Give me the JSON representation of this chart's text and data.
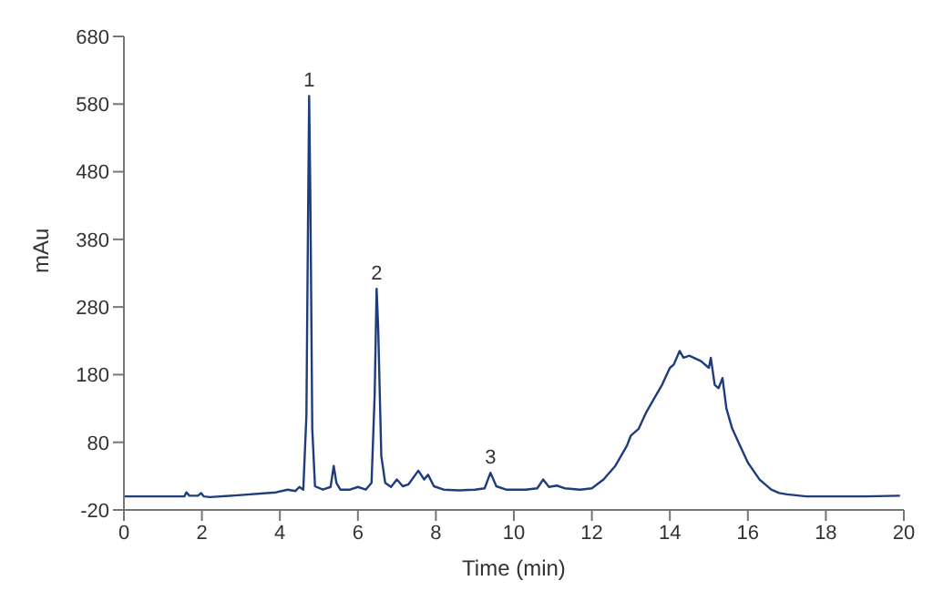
{
  "chart_data": {
    "type": "line",
    "xlabel": "Time (min)",
    "ylabel": "mAu",
    "x": [
      0,
      1.55,
      1.6,
      1.68,
      1.9,
      1.98,
      2.05,
      2.2,
      3,
      3.9,
      4.2,
      4.4,
      4.5,
      4.6,
      4.68,
      4.72,
      4.75,
      4.78,
      4.83,
      4.9,
      5.1,
      5.3,
      5.38,
      5.45,
      5.55,
      5.8,
      6.0,
      6.2,
      6.35,
      6.43,
      6.48,
      6.52,
      6.6,
      6.7,
      6.85,
      7.0,
      7.15,
      7.3,
      7.55,
      7.7,
      7.8,
      7.95,
      8.2,
      8.6,
      9.0,
      9.25,
      9.4,
      9.55,
      9.8,
      10.3,
      10.6,
      10.75,
      10.9,
      11.1,
      11.3,
      11.7,
      12.0,
      12.3,
      12.6,
      12.9,
      13.0,
      13.2,
      13.4,
      13.6,
      13.8,
      14.0,
      14.1,
      14.25,
      14.35,
      14.5,
      14.8,
      15.0,
      15.05,
      15.15,
      15.25,
      15.35,
      15.45,
      15.6,
      15.8,
      16.0,
      16.3,
      16.6,
      16.8,
      17.0,
      17.5,
      18,
      19,
      19.9
    ],
    "series": [
      {
        "color": "#1f3d7a",
        "values": [
          0,
          0,
          6,
          1,
          1,
          5,
          0,
          -1,
          2,
          6,
          10,
          8,
          14,
          10,
          120,
          400,
          592,
          450,
          100,
          15,
          10,
          14,
          45,
          20,
          10,
          10,
          14,
          10,
          20,
          150,
          307,
          250,
          60,
          20,
          14,
          25,
          15,
          18,
          38,
          25,
          32,
          15,
          10,
          9,
          10,
          12,
          35,
          15,
          10,
          10,
          12,
          25,
          14,
          16,
          12,
          10,
          12,
          25,
          45,
          75,
          90,
          100,
          125,
          145,
          165,
          190,
          195,
          215,
          205,
          208,
          200,
          190,
          205,
          165,
          160,
          175,
          130,
          100,
          75,
          50,
          25,
          10,
          5,
          3,
          0,
          0,
          0,
          1
        ]
      }
    ],
    "xlim": [
      0,
      20
    ],
    "xticks": [
      0,
      2,
      4,
      6,
      8,
      10,
      12,
      14,
      16,
      18,
      20
    ],
    "ylim": [
      -20,
      680
    ],
    "yticks": [
      -20,
      80,
      180,
      280,
      380,
      480,
      580,
      680
    ],
    "grid": false,
    "legend": false,
    "marker": "none",
    "line_style": "solid",
    "annotations": [
      {
        "text": "1",
        "x": 4.75,
        "y": 592
      },
      {
        "text": "2",
        "x": 6.48,
        "y": 307
      },
      {
        "text": "3",
        "x": 9.4,
        "y": 35
      }
    ]
  }
}
